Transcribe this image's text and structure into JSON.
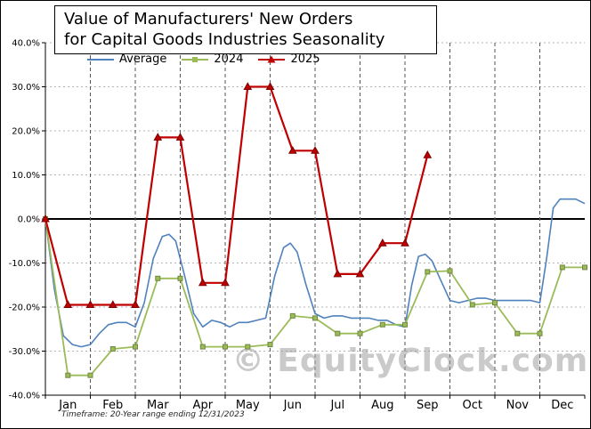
{
  "watermark": "© EquityClock.com",
  "footer": "Timeframe: 20-Year range ending 12/31/2023",
  "title_lines": [
    "Value of Manufacturers' New Orders",
    "for Capital Goods Industries Seasonality"
  ],
  "legend": {
    "items": [
      {
        "label": "Average",
        "color": "#4f81bd",
        "marker": "none"
      },
      {
        "label": "2024",
        "color": "#9bbb59",
        "marker": "square"
      },
      {
        "label": "2025",
        "color": "#c00000",
        "marker": "triangle"
      }
    ]
  },
  "chart_data": {
    "type": "line",
    "title": "Value of Manufacturers' New Orders for Capital Goods Industries Seasonality",
    "xlabel": "",
    "ylabel": "",
    "ylim": [
      -40,
      40
    ],
    "x_months": [
      "Jan",
      "Feb",
      "Mar",
      "Apr",
      "May",
      "Jun",
      "Jul",
      "Aug",
      "Sep",
      "Oct",
      "Nov",
      "Dec"
    ],
    "yticks": [
      {
        "value": 40,
        "label": "40.0%"
      },
      {
        "value": 30,
        "label": "30.0%"
      },
      {
        "value": 20,
        "label": "20.0%"
      },
      {
        "value": 10,
        "label": "10.0%"
      },
      {
        "value": 0,
        "label": "0.0%"
      },
      {
        "value": -10,
        "label": "-10.0%"
      },
      {
        "value": -20,
        "label": "-20.0%"
      },
      {
        "value": -30,
        "label": "-30.0%"
      },
      {
        "value": -40,
        "label": "-40.0%"
      }
    ],
    "grid": true,
    "legend_position": "top",
    "series": [
      {
        "name": "Average",
        "color": "#4f81bd",
        "marker": "none",
        "line_width": 1.6,
        "points_x_month_y_pct": [
          [
            0,
            0
          ],
          [
            0.2,
            -16
          ],
          [
            0.4,
            -26.5
          ],
          [
            0.6,
            -28.5
          ],
          [
            0.8,
            -29
          ],
          [
            1.0,
            -28.5
          ],
          [
            1.2,
            -26
          ],
          [
            1.4,
            -24
          ],
          [
            1.6,
            -23.5
          ],
          [
            1.8,
            -23.5
          ],
          [
            2.0,
            -24.5
          ],
          [
            2.2,
            -19
          ],
          [
            2.4,
            -9
          ],
          [
            2.6,
            -4
          ],
          [
            2.75,
            -3.5
          ],
          [
            2.9,
            -5
          ],
          [
            3.1,
            -13
          ],
          [
            3.3,
            -21.5
          ],
          [
            3.5,
            -24.5
          ],
          [
            3.7,
            -23
          ],
          [
            3.9,
            -23.5
          ],
          [
            4.1,
            -24.5
          ],
          [
            4.3,
            -23.5
          ],
          [
            4.5,
            -23.5
          ],
          [
            4.7,
            -23
          ],
          [
            4.9,
            -22.5
          ],
          [
            5.1,
            -13
          ],
          [
            5.3,
            -6.5
          ],
          [
            5.45,
            -5.5
          ],
          [
            5.6,
            -7.5
          ],
          [
            5.8,
            -15
          ],
          [
            6.0,
            -21.5
          ],
          [
            6.2,
            -22.5
          ],
          [
            6.4,
            -22
          ],
          [
            6.6,
            -22
          ],
          [
            6.8,
            -22.5
          ],
          [
            7.0,
            -22.5
          ],
          [
            7.2,
            -22.5
          ],
          [
            7.4,
            -23
          ],
          [
            7.6,
            -23
          ],
          [
            7.8,
            -24
          ],
          [
            8.0,
            -24.5
          ],
          [
            8.15,
            -15
          ],
          [
            8.3,
            -8.5
          ],
          [
            8.45,
            -8
          ],
          [
            8.6,
            -9.5
          ],
          [
            8.8,
            -14
          ],
          [
            9.0,
            -18.5
          ],
          [
            9.2,
            -19
          ],
          [
            9.4,
            -18.5
          ],
          [
            9.6,
            -18
          ],
          [
            9.8,
            -18
          ],
          [
            10.0,
            -18.5
          ],
          [
            10.2,
            -18.5
          ],
          [
            10.4,
            -18.5
          ],
          [
            10.6,
            -18.5
          ],
          [
            10.8,
            -18.5
          ],
          [
            11.0,
            -19
          ],
          [
            11.15,
            -9
          ],
          [
            11.3,
            2.5
          ],
          [
            11.45,
            4.5
          ],
          [
            11.6,
            4.5
          ],
          [
            11.8,
            4.5
          ],
          [
            12,
            3.5
          ]
        ]
      },
      {
        "name": "2024",
        "color": "#9bbb59",
        "marker": "square",
        "line_width": 1.8,
        "points_x_month_y_pct": [
          [
            0,
            0
          ],
          [
            0.5,
            -35.5
          ],
          [
            1,
            -35.5
          ],
          [
            1.5,
            -29.5
          ],
          [
            2,
            -29
          ],
          [
            2.5,
            -13.5
          ],
          [
            3,
            -13.5
          ],
          [
            3.5,
            -29
          ],
          [
            4,
            -29
          ],
          [
            4.5,
            -29
          ],
          [
            5,
            -28.5
          ],
          [
            5.5,
            -22
          ],
          [
            6,
            -22.5
          ],
          [
            6.5,
            -26
          ],
          [
            7,
            -26
          ],
          [
            7.5,
            -24
          ],
          [
            8,
            -24
          ],
          [
            8.5,
            -12
          ],
          [
            9,
            -11.8
          ],
          [
            9.5,
            -19.5
          ],
          [
            10,
            -19
          ],
          [
            10.5,
            -26
          ],
          [
            11,
            -26
          ],
          [
            11.5,
            -11
          ],
          [
            12,
            -11
          ]
        ]
      },
      {
        "name": "2025",
        "color": "#c00000",
        "marker": "triangle",
        "line_width": 2.2,
        "points_x_month_y_pct": [
          [
            0,
            0
          ],
          [
            0.5,
            -19.5
          ],
          [
            1,
            -19.5
          ],
          [
            1.5,
            -19.5
          ],
          [
            2,
            -19.5
          ],
          [
            2.5,
            18.5
          ],
          [
            3,
            18.5
          ],
          [
            3.5,
            -14.5
          ],
          [
            4,
            -14.5
          ],
          [
            4.5,
            30
          ],
          [
            5,
            30
          ],
          [
            5.5,
            15.5
          ],
          [
            6,
            15.5
          ],
          [
            6.5,
            -12.5
          ],
          [
            7,
            -12.5
          ],
          [
            7.5,
            -5.5
          ],
          [
            8,
            -5.5
          ],
          [
            8.5,
            14.5
          ]
        ]
      }
    ]
  }
}
